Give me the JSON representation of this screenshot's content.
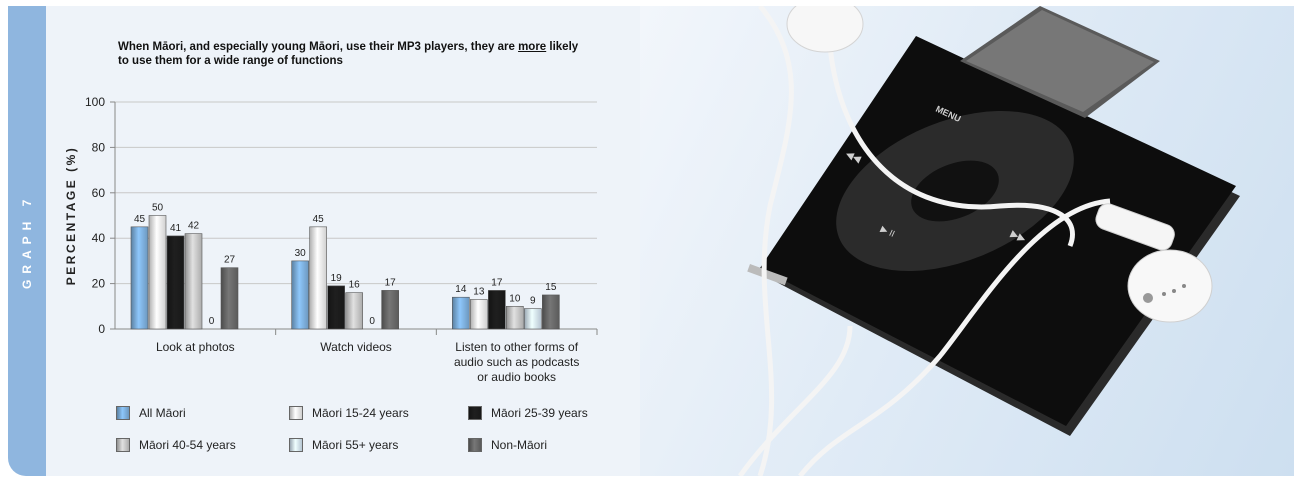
{
  "graph_label": "GRAPH 7",
  "chart_data": {
    "type": "bar",
    "title_pre": "When Māori, and especially young Māori, use their MP3 players, they are ",
    "title_emph": "more",
    "title_post": " likely to use them for a wide range of functions",
    "ylabel": "PERCENTAGE (%)",
    "ylim": [
      0,
      100
    ],
    "yticks": [
      0,
      20,
      40,
      60,
      80,
      100
    ],
    "grid": true,
    "categories": [
      [
        "Look at photos"
      ],
      [
        "Watch videos"
      ],
      [
        "Listen to other forms of",
        "audio such as podcasts",
        "or audio books"
      ]
    ],
    "series": [
      {
        "name": "All Māori",
        "values": [
          45,
          30,
          14
        ],
        "color": "#7fb2e0"
      },
      {
        "name": "Māori 15-24 years",
        "values": [
          50,
          45,
          13
        ],
        "color": "#f3f3f3"
      },
      {
        "name": "Māori 25-39 years",
        "values": [
          41,
          19,
          17
        ],
        "color": "#1c1c1c"
      },
      {
        "name": "Māori 40-54 years",
        "values": [
          42,
          16,
          10
        ],
        "color": "#c9c9c9"
      },
      {
        "name": "Māori 55+ years",
        "values": [
          0,
          0,
          9
        ],
        "color": "#d6e8f7"
      },
      {
        "name": "Non-Māori",
        "values": [
          27,
          17,
          15
        ],
        "color": "#6a6a6a"
      }
    ],
    "legend_position": "bottom"
  }
}
